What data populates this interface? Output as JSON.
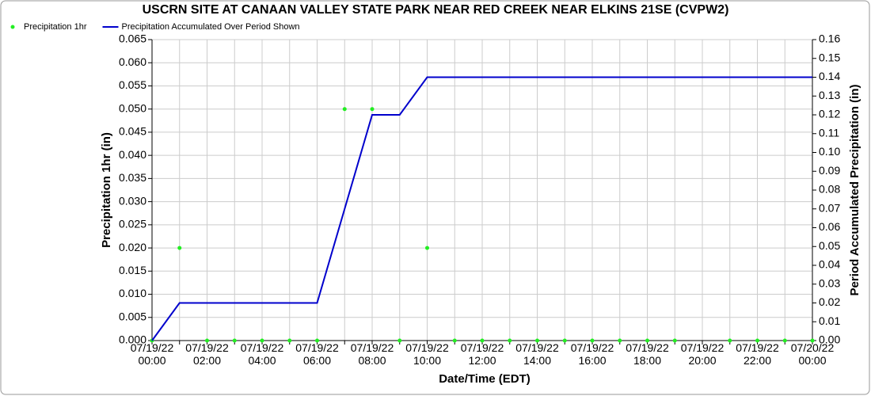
{
  "chart_data": {
    "type": "line",
    "title": "USCRN SITE AT CANAAN VALLEY STATE PARK NEAR RED CREEK NEAR ELKINS 21SE (CVPW2)",
    "x_label": "Date/Time (EDT)",
    "y_label": "Precipitation 1hr (in)",
    "y2_label": "Period Accumulated Precipitation (in)",
    "categories": [
      "07/19/22\n00:00",
      null,
      "07/19/22\n02:00",
      null,
      "07/19/22\n04:00",
      null,
      "07/19/22\n06:00",
      null,
      "07/19/22\n08:00",
      null,
      "07/19/22\n10:00",
      null,
      "07/19/22\n12:00",
      null,
      "07/19/22\n14:00",
      null,
      "07/19/22\n16:00",
      null,
      "07/19/22\n18:00",
      null,
      "07/19/22\n20:00",
      null,
      "07/19/22\n22:00",
      null,
      "07/20/22\n00:00"
    ],
    "series": [
      {
        "name": "Precipitation 1hr",
        "kind": "scatter",
        "color": "#22ee22",
        "values": [
          0,
          0.02,
          0,
          0,
          0,
          0,
          0,
          0.05,
          0.05,
          0,
          0.02,
          0,
          0,
          0,
          0,
          0,
          0,
          0,
          0,
          0,
          null,
          0,
          0,
          0,
          0
        ]
      },
      {
        "name": "Precipitation Accumulated Over Period Shown",
        "kind": "line",
        "color": "#0000cc",
        "axis": "y2",
        "values": [
          0,
          0.02,
          0.02,
          0.02,
          0.02,
          0.02,
          0.02,
          0.07,
          0.12,
          0.12,
          0.14,
          0.14,
          0.14,
          0.14,
          0.14,
          0.14,
          0.14,
          0.14,
          0.14,
          0.14,
          0.14,
          0.14,
          0.14,
          0.14,
          0.14
        ]
      }
    ],
    "ylim": [
      0,
      0.065
    ],
    "yticks": [
      {
        "value": 0,
        "label": "0.000"
      },
      {
        "value": 0.005,
        "label": "0.005"
      },
      {
        "value": 0.01,
        "label": "0.010"
      },
      {
        "value": 0.015,
        "label": "0.015"
      },
      {
        "value": 0.02,
        "label": "0.020"
      },
      {
        "value": 0.025,
        "label": "0.025"
      },
      {
        "value": 0.03,
        "label": "0.030"
      },
      {
        "value": 0.035,
        "label": "0.035"
      },
      {
        "value": 0.04,
        "label": "0.040"
      },
      {
        "value": 0.045,
        "label": "0.045"
      },
      {
        "value": 0.05,
        "label": "0.050"
      },
      {
        "value": 0.055,
        "label": "0.055"
      },
      {
        "value": 0.06,
        "label": "0.060"
      },
      {
        "value": 0.065,
        "label": "0.065"
      }
    ],
    "y2lim": [
      0,
      0.16
    ],
    "y2ticks": [
      {
        "value": 0,
        "label": "0.00"
      },
      {
        "value": 0.01,
        "label": "0.01"
      },
      {
        "value": 0.02,
        "label": "0.02"
      },
      {
        "value": 0.03,
        "label": "0.03"
      },
      {
        "value": 0.04,
        "label": "0.04"
      },
      {
        "value": 0.05,
        "label": "0.05"
      },
      {
        "value": 0.06,
        "label": "0.06"
      },
      {
        "value": 0.07,
        "label": "0.07"
      },
      {
        "value": 0.08,
        "label": "0.08"
      },
      {
        "value": 0.09,
        "label": "0.09"
      },
      {
        "value": 0.1,
        "label": "0.10"
      },
      {
        "value": 0.11,
        "label": "0.11"
      },
      {
        "value": 0.12,
        "label": "0.12"
      },
      {
        "value": 0.13,
        "label": "0.13"
      },
      {
        "value": 0.14,
        "label": "0.14"
      },
      {
        "value": 0.15,
        "label": "0.15"
      },
      {
        "value": 0.16,
        "label": "0.16"
      }
    ],
    "grid": true,
    "legend": "top-left"
  }
}
